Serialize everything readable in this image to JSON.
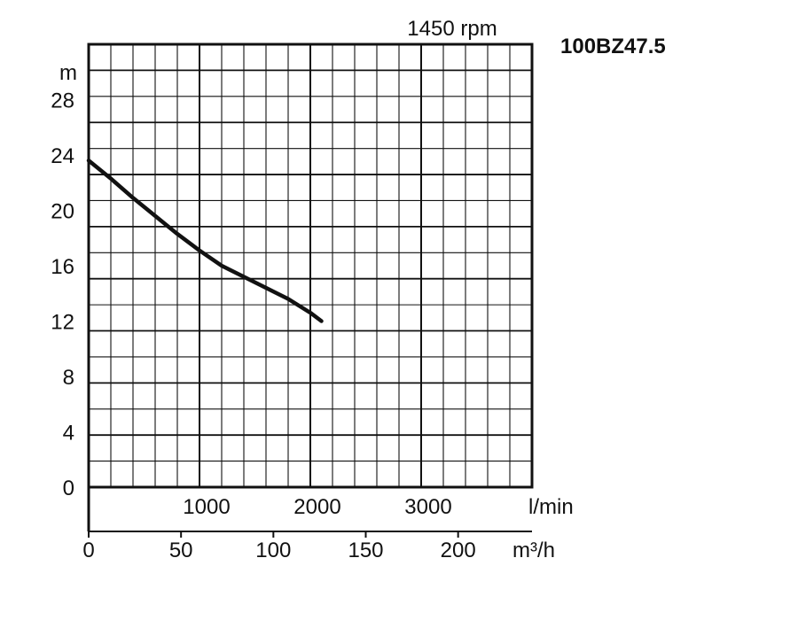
{
  "chart_data": {
    "type": "line",
    "title": "100BZ47.5",
    "subtitle": "1450 rpm",
    "ylabel": "m",
    "xlabel": "l/min",
    "x2label": "m³/h",
    "ylim": [
      0,
      32
    ],
    "xlim": [
      0,
      4000
    ],
    "x2lim": [
      0,
      240
    ],
    "yticks": [
      "0",
      "4",
      "8",
      "12",
      "16",
      "20",
      "24",
      "28"
    ],
    "xticks": [
      "1000",
      "2000",
      "3000"
    ],
    "x2ticks": [
      "0",
      "50",
      "100",
      "150",
      "200"
    ],
    "grid": true,
    "series": [
      {
        "x": [
          0,
          200,
          400,
          600,
          800,
          1000,
          1200,
          1400,
          1600,
          1800,
          2000,
          2100
        ],
        "y": [
          23.6,
          22.3,
          20.9,
          19.6,
          18.3,
          17.1,
          16.0,
          15.2,
          14.4,
          13.6,
          12.6,
          12.0
        ]
      }
    ],
    "colors": {
      "line": "#111111",
      "grid": "#111111",
      "text": "#111111"
    }
  }
}
